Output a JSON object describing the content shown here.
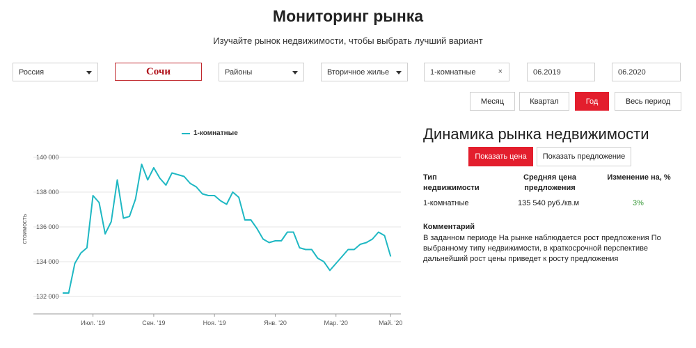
{
  "header": {
    "title": "Мониторинг рынка",
    "subtitle": "Изучайте рынок недвижимости, чтобы выбрать лучший вариант"
  },
  "filters": {
    "country": "Россия",
    "city": "Сочи",
    "districts": "Районы",
    "market_type": "Вторичное жилье",
    "rooms": "1-комнатные",
    "rooms_clear": "×",
    "date_from": "06.2019",
    "date_to": "06.2020"
  },
  "periods": {
    "month": "Месяц",
    "quarter": "Квартал",
    "year": "Год",
    "all": "Весь период",
    "active": "year"
  },
  "panel": {
    "title": "Динамика рынка недвижимости",
    "show_price": "Показать цена",
    "show_supply": "Показать предложение",
    "table": {
      "col_type": "Тип недвижимости",
      "col_price": "Средняя цена предложения",
      "col_change": "Изменение на, %",
      "row_type": "1-комнатные",
      "row_price": "135 540 руб./кв.м",
      "row_change": "3%"
    },
    "comment_title": "Комментарий",
    "comment_text": "В заданном периоде На рынке наблюдается рост предложения По выбранному типу недвижимости, в краткосрочной перспективе дальнейший рост цены приведет к росту предложения"
  },
  "colors": {
    "accent": "#e31e2d",
    "line": "#1fb8c3",
    "positive": "#3a9a3a"
  },
  "chart_data": {
    "type": "line",
    "ylabel": "стоимость",
    "ylim": [
      131000,
      140800
    ],
    "yticks": [
      132000,
      134000,
      136000,
      138000,
      140000
    ],
    "ytick_labels": [
      "132 000",
      "134 000",
      "136 000",
      "138 000",
      "140 000"
    ],
    "xlim": [
      0,
      55
    ],
    "xticks": [
      {
        "label": "Июл. '19",
        "at": 5
      },
      {
        "label": "Сен. '19",
        "at": 15
      },
      {
        "label": "Ноя. '19",
        "at": 25
      },
      {
        "label": "Янв. '20",
        "at": 35
      },
      {
        "label": "Мар. '20",
        "at": 45
      },
      {
        "label": "Май. '20",
        "at": 54
      }
    ],
    "series": [
      {
        "name": "1-комнатные",
        "values": [
          132200,
          132200,
          133900,
          134500,
          134800,
          137800,
          137400,
          135600,
          136300,
          138700,
          136500,
          136600,
          137600,
          139600,
          138700,
          139400,
          138800,
          138400,
          139100,
          139000,
          138900,
          138500,
          138300,
          137900,
          137800,
          137800,
          137500,
          137300,
          138000,
          137700,
          136400,
          136400,
          135900,
          135300,
          135100,
          135200,
          135200,
          135700,
          135700,
          134800,
          134700,
          134700,
          134200,
          134000,
          133500,
          133900,
          134300,
          134700,
          134700,
          135000,
          135100,
          135300,
          135700,
          135500,
          134300
        ]
      }
    ]
  }
}
